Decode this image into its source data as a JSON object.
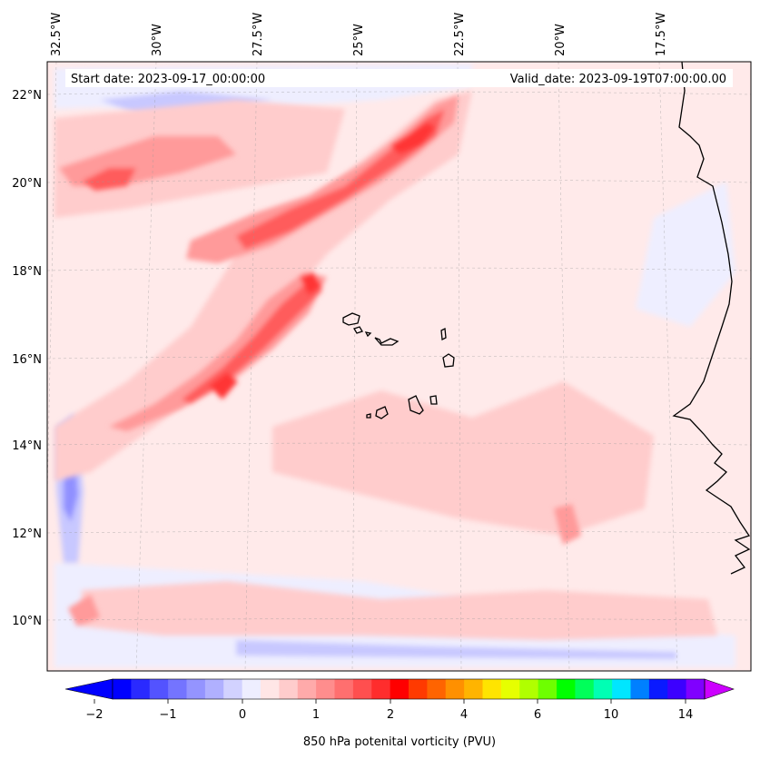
{
  "map": {
    "header": {
      "start_label": "Start date: 2023-09-17_00:00:00",
      "valid_label": "Valid_date: 2023-09-19T07:00:00.00"
    },
    "longitude_ticks": [
      "32.5°W",
      "30°W",
      "27.5°W",
      "25°W",
      "22.5°W",
      "20°W",
      "17.5°W"
    ],
    "latitude_ticks": [
      "22°N",
      "20°N",
      "18°N",
      "16°N",
      "14°N",
      "12°N",
      "10°N"
    ],
    "colorbar": {
      "label": "850 hPa potenital vorticity (PVU)",
      "tick_labels": [
        "−2",
        "−1",
        "0",
        "1",
        "2",
        "4",
        "6",
        "10",
        "14"
      ],
      "colors": [
        "#0000ff",
        "#2a2aff",
        "#5353ff",
        "#7474ff",
        "#9494ff",
        "#b0b0ff",
        "#d2d2ff",
        "#eeeeff",
        "#ffe6e6",
        "#ffcccc",
        "#ffaaaa",
        "#ff8d8d",
        "#ff6f6f",
        "#ff4f4f",
        "#ff2d2d",
        "#ff0000",
        "#ff3a00",
        "#ff6400",
        "#ff9000",
        "#ffb400",
        "#ffe400",
        "#e6ff00",
        "#b0ff00",
        "#6eff00",
        "#00ff00",
        "#00ff5a",
        "#00ffb4",
        "#00e6ff",
        "#0080ff",
        "#0a1aff",
        "#3c00ff",
        "#8000ff"
      ],
      "under_color": "#0000ff",
      "over_color": "#cc00ff"
    },
    "field_colors": {
      "background": "#ffeaea",
      "light_red": "#ffcccc",
      "mid_red": "#ff9a9a",
      "strong_red": "#ff5c5c",
      "deep_red": "#ff3434",
      "light_blue": "#eeeeff",
      "mid_blue": "#c8c8ff",
      "deep_blue": "#9090ff",
      "coast": "#000000"
    }
  }
}
